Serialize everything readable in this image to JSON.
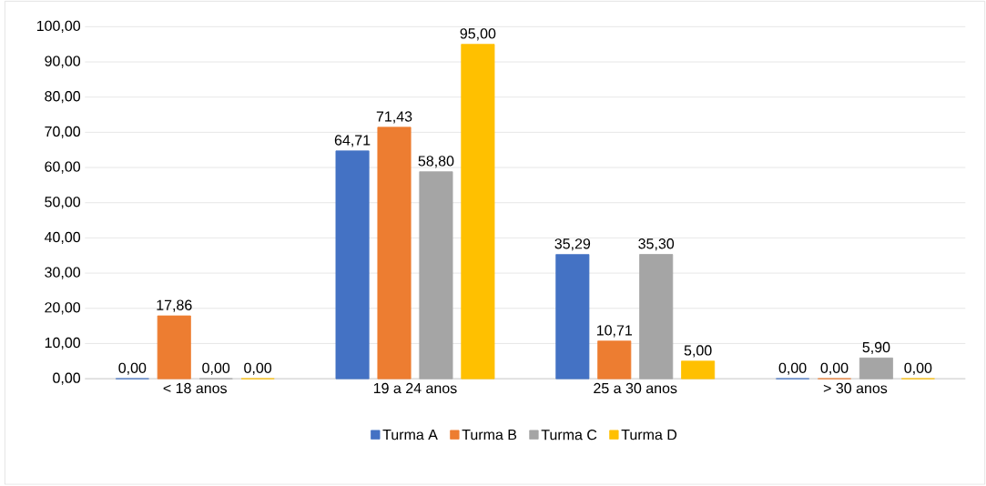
{
  "chart_data": {
    "type": "bar",
    "categories": [
      "< 18 anos",
      "19 a 24 anos",
      "25 a 30 anos",
      "> 30 anos"
    ],
    "series": [
      {
        "name": "Turma A",
        "color": "#4472c4",
        "values": [
          0,
          64.71,
          35.29,
          0
        ],
        "value_labels": [
          "0,00",
          "64,71",
          "35,29",
          "0,00"
        ]
      },
      {
        "name": "Turma B",
        "color": "#ed7d31",
        "values": [
          17.86,
          71.43,
          10.71,
          0
        ],
        "value_labels": [
          "17,86",
          "71,43",
          "10,71",
          "0,00"
        ]
      },
      {
        "name": "Turma C",
        "color": "#a5a5a5",
        "values": [
          0,
          58.8,
          35.3,
          5.9
        ],
        "value_labels": [
          "0,00",
          "58,80",
          "35,30",
          "5,90"
        ]
      },
      {
        "name": "Turma D",
        "color": "#ffc000",
        "values": [
          0,
          95.0,
          5.0,
          0
        ],
        "value_labels": [
          "0,00",
          "95,00",
          "5,00",
          "0,00"
        ]
      }
    ],
    "ylim": [
      0,
      100
    ],
    "yticks": [
      {
        "value": 0,
        "label": "0,00"
      },
      {
        "value": 10,
        "label": "10,00"
      },
      {
        "value": 20,
        "label": "20,00"
      },
      {
        "value": 30,
        "label": "30,00"
      },
      {
        "value": 40,
        "label": "40,00"
      },
      {
        "value": 50,
        "label": "50,00"
      },
      {
        "value": 60,
        "label": "60,00"
      },
      {
        "value": 70,
        "label": "70,00"
      },
      {
        "value": 80,
        "label": "80,00"
      },
      {
        "value": 90,
        "label": "90,00"
      },
      {
        "value": 100,
        "label": "100,00"
      }
    ],
    "grid": "y",
    "legend": "bottom"
  }
}
